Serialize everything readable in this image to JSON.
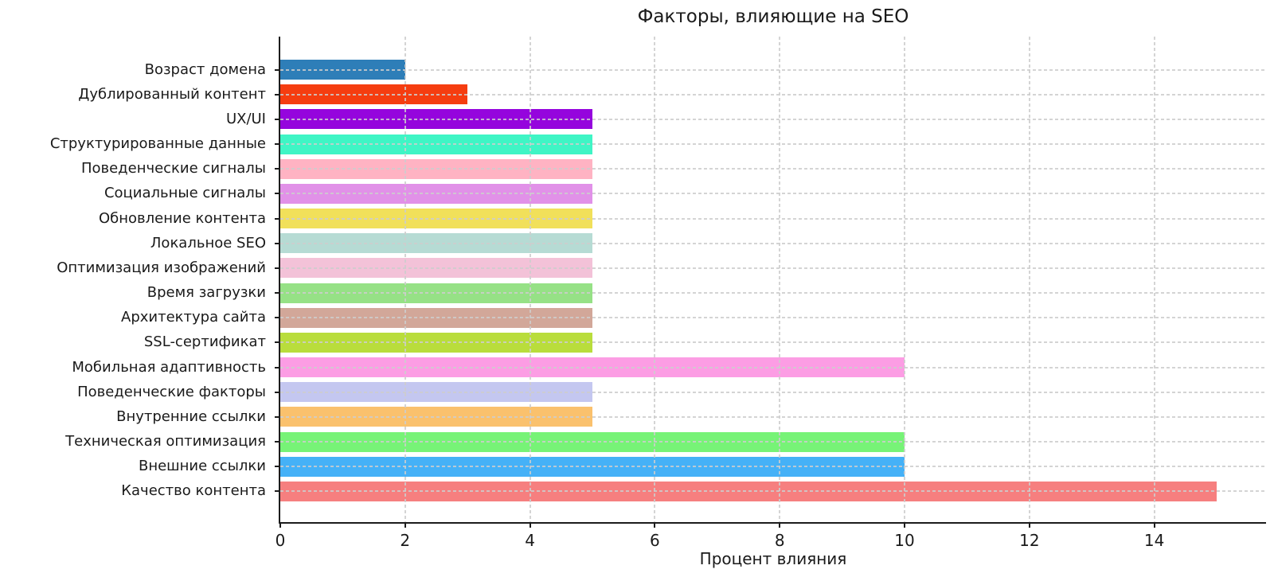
{
  "title": "Факторы, влияющие на SEO",
  "chart_data": {
    "type": "bar",
    "orientation": "horizontal",
    "title": "Факторы, влияющие на SEO",
    "xlabel": "Процент влияния",
    "ylabel": "",
    "categories": [
      "Возраст домена",
      "Дублированный контент",
      "UX/UI",
      "Структурированные данные",
      "Поведенческие сигналы",
      "Социальные сигналы",
      "Обновление контента",
      "Локальное SEO",
      "Оптимизация изображений",
      "Время загрузки",
      "Архитектура сайта",
      "SSL-сертификат",
      "Мобильная адаптивность",
      "Поведенческие факторы",
      "Внутренние ссылки",
      "Техническая оптимизация",
      "Внешние ссылки",
      "Качество контента"
    ],
    "values": [
      2,
      3,
      5,
      5,
      5,
      5,
      5,
      5,
      5,
      5,
      5,
      5,
      10,
      5,
      5,
      10,
      10,
      15
    ],
    "bar_colors": [
      "#2e7eb8",
      "#f53d10",
      "#9505dd",
      "#3ff5c5",
      "#ffb3c3",
      "#e191e8",
      "#f1e05a",
      "#b6dbd4",
      "#f3c2d8",
      "#96e186",
      "#d2a799",
      "#b9dd3c",
      "#fc9de4",
      "#c4c7f0",
      "#fac16d",
      "#77f377",
      "#45b1f7",
      "#f67f7f"
    ],
    "x_ticks": [
      0,
      2,
      4,
      6,
      8,
      10,
      12,
      14
    ],
    "xlim": [
      0,
      15.79
    ],
    "grid": "dashed-both-axes-over-bars",
    "legend": "none"
  },
  "colors": {
    "background": "#ffffff",
    "axis": "#1c1c1c",
    "grid": "#cdcdcd",
    "text": "#1a1a1a"
  }
}
